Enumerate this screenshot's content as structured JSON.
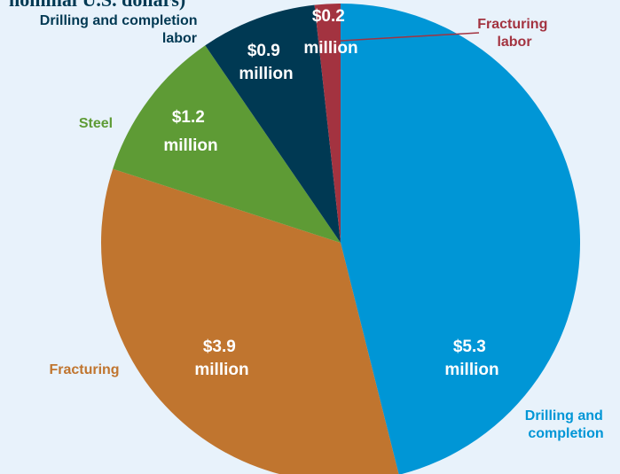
{
  "chart_data": {
    "type": "pie",
    "title": "nominal U.S. dollars)",
    "categories": [
      "Drilling and completion",
      "Fracturing",
      "Steel",
      "Drilling and completion labor",
      "Fracturing labor"
    ],
    "values": [
      5.3,
      3.9,
      1.2,
      0.9,
      0.2
    ],
    "value_labels": [
      "$5.3 million",
      "$3.9 million",
      "$1.2 million",
      "$0.9 million",
      "$0.2 million"
    ],
    "colors": [
      "#0096d6",
      "#c0752f",
      "#5e9b35",
      "#003953",
      "#a33340"
    ]
  }
}
